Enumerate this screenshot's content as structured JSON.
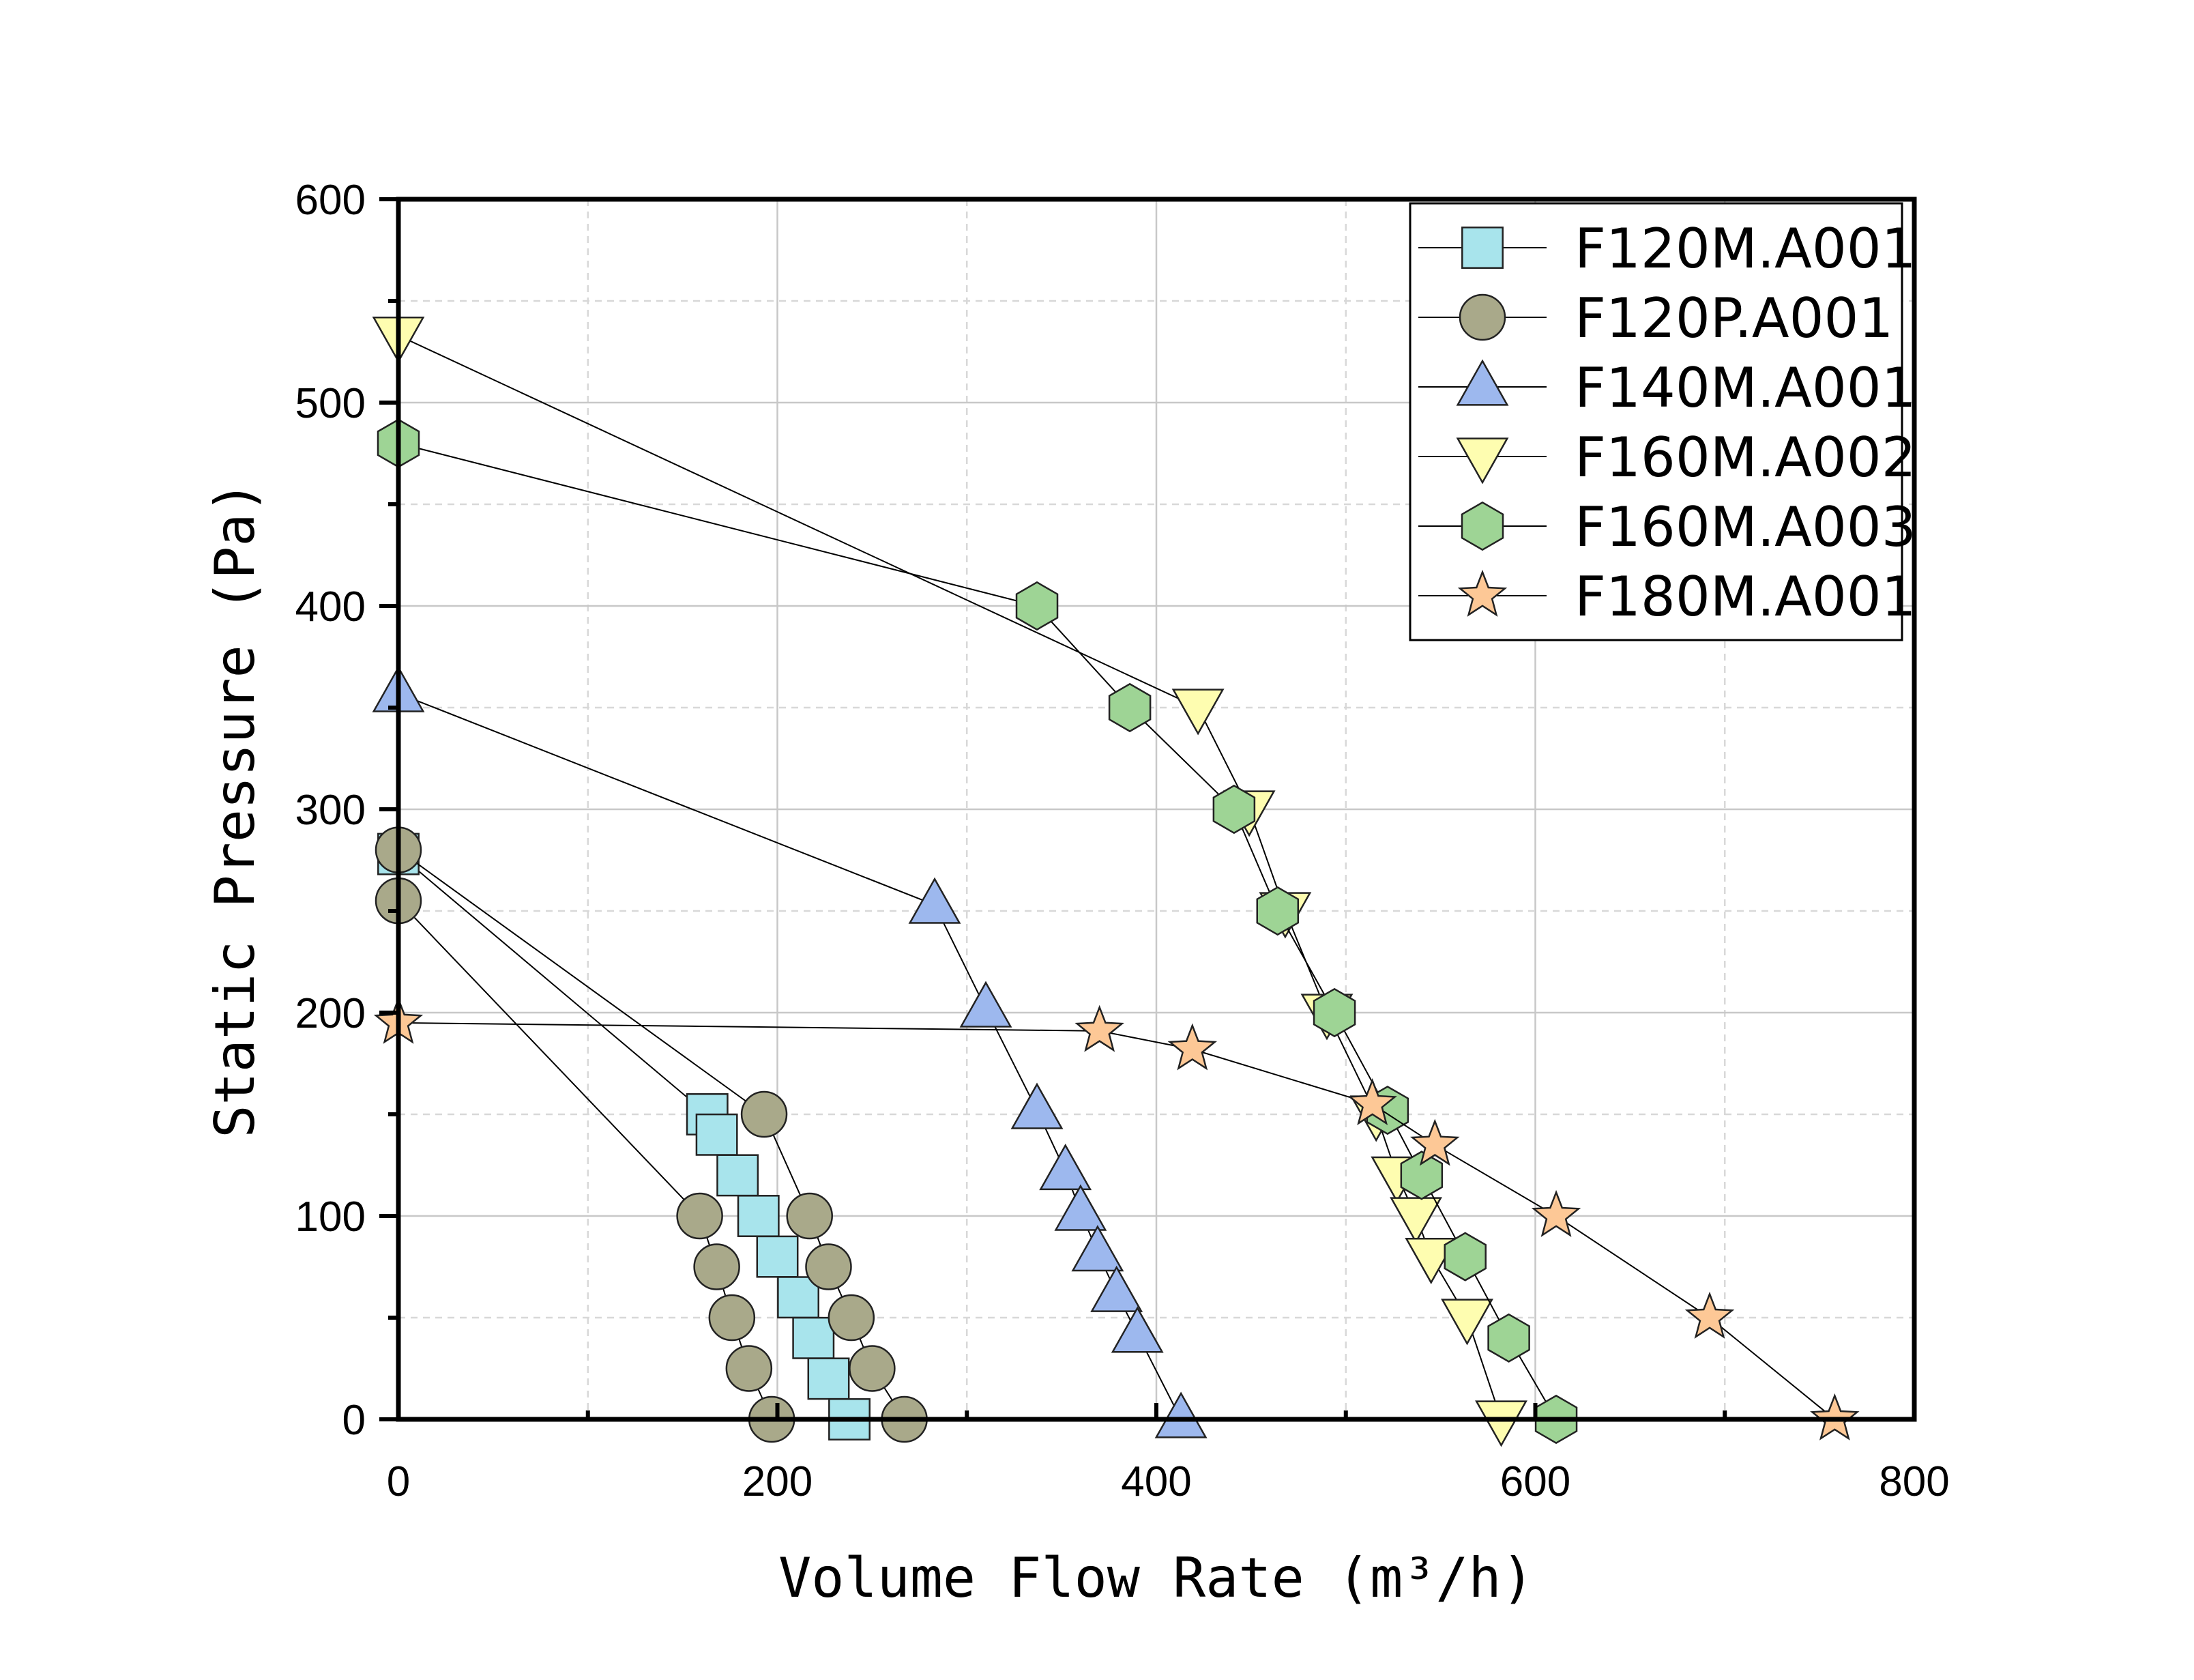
{
  "chart_data": {
    "type": "line",
    "xlabel": "Volume Flow Rate (m³/h)",
    "ylabel": "Static Pressure (Pa)",
    "xlim": [
      0,
      800
    ],
    "ylim": [
      0,
      600
    ],
    "xticks": [
      0,
      200,
      400,
      600,
      800
    ],
    "yticks": [
      0,
      100,
      200,
      300,
      400,
      500,
      600
    ],
    "grid": true,
    "legend_position": "top-right",
    "series": [
      {
        "name": "F120M.A001",
        "marker": "square",
        "color": "#a8e4ec",
        "x": [
          0,
          163,
          168,
          179,
          190,
          200,
          211,
          219,
          227,
          238
        ],
        "y": [
          278,
          150,
          140,
          120,
          100,
          80,
          60,
          40,
          20,
          0
        ]
      },
      {
        "name": "F120P.A001",
        "marker": "circle",
        "color": "#a9a98a",
        "x": [
          0,
          159,
          168,
          176,
          185,
          197
        ],
        "y": [
          255,
          100,
          75,
          50,
          25,
          0
        ]
      },
      {
        "name": "F120P.A001",
        "marker": "circle",
        "color": "#a9a98a",
        "x": [
          0,
          193,
          217,
          227,
          239,
          250,
          267
        ],
        "y": [
          280,
          150,
          100,
          75,
          50,
          25,
          0
        ]
      },
      {
        "name": "F140M.A001",
        "marker": "triangle-up",
        "color": "#9db8ee",
        "x": [
          0,
          283,
          310,
          337,
          352,
          360,
          369,
          379,
          390,
          413
        ],
        "y": [
          357,
          253,
          202,
          152,
          122,
          102,
          82,
          62,
          42,
          0
        ]
      },
      {
        "name": "F160M.A002",
        "marker": "triangle-down",
        "color": "#fefdb0",
        "x": [
          0,
          422,
          449,
          468,
          490,
          516,
          527,
          537,
          545,
          564,
          582
        ],
        "y": [
          533,
          350,
          300,
          250,
          200,
          150,
          120,
          100,
          80,
          50,
          0
        ]
      },
      {
        "name": "F160M.A003",
        "marker": "hexagon",
        "color": "#9ed495",
        "x": [
          0,
          337,
          386,
          441,
          464,
          494,
          522,
          540,
          563,
          586,
          611
        ],
        "y": [
          480,
          400,
          350,
          300,
          250,
          200,
          152,
          120,
          80,
          40,
          0
        ]
      },
      {
        "name": "F180M.A001",
        "marker": "star",
        "color": "#fdc896",
        "x": [
          0,
          370,
          419,
          514,
          547,
          611,
          692,
          758
        ],
        "y": [
          195,
          191,
          182,
          155,
          135,
          100,
          50,
          0
        ]
      }
    ],
    "legend": [
      {
        "label": "F120M.A001",
        "marker": "square",
        "color": "#a8e4ec"
      },
      {
        "label": "F120P.A001",
        "marker": "circle",
        "color": "#a9a98a"
      },
      {
        "label": "F140M.A001",
        "marker": "triangle-up",
        "color": "#9db8ee"
      },
      {
        "label": "F160M.A002",
        "marker": "triangle-down",
        "color": "#fefdb0"
      },
      {
        "label": "F160M.A003",
        "marker": "hexagon",
        "color": "#9ed495"
      },
      {
        "label": "F180M.A001",
        "marker": "star",
        "color": "#fdc896"
      }
    ]
  }
}
